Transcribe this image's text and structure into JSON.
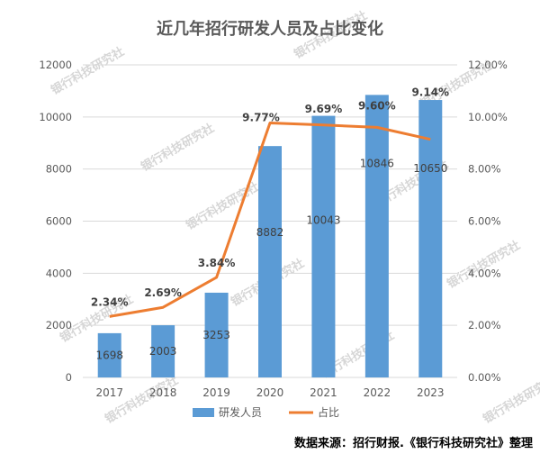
{
  "title": "近几年招行研发人员及占比变化",
  "source": "数据来源：招行财报.《银行科技研究社》整理",
  "watermark_text": "银行科技研究社",
  "colors": {
    "bar": "#5B9BD5",
    "line": "#ED7D31",
    "grid": "#D9D9D9",
    "text": "#595959"
  },
  "chart_data": {
    "type": "bar",
    "title": "近几年招行研发人员及占比变化",
    "categories": [
      "2017",
      "2018",
      "2019",
      "2020",
      "2021",
      "2022",
      "2023"
    ],
    "series": [
      {
        "name": "研发人员",
        "type": "bar",
        "axis": "left",
        "values": [
          1698,
          2003,
          3253,
          8882,
          10043,
          10846,
          10650
        ]
      },
      {
        "name": "占比",
        "type": "line",
        "axis": "right",
        "values": [
          2.34,
          2.69,
          3.84,
          9.77,
          9.69,
          9.6,
          9.14
        ]
      }
    ],
    "bar_labels": [
      "1698",
      "2003",
      "3253",
      "8882",
      "10043",
      "10846",
      "10650"
    ],
    "line_labels": [
      "2.34%",
      "2.69%",
      "3.84%",
      "9.77%",
      "9.69%",
      "9.60%",
      "9.14%"
    ],
    "ylim_left": [
      0,
      12000
    ],
    "yticks_left": [
      "0",
      "2000",
      "4000",
      "6000",
      "8000",
      "10000",
      "12000"
    ],
    "ylim_right": [
      0,
      12
    ],
    "yticks_right": [
      "0.00%",
      "2.00%",
      "4.00%",
      "6.00%",
      "8.00%",
      "10.00%",
      "12.00%"
    ],
    "grid": true,
    "legend_position": "bottom"
  }
}
